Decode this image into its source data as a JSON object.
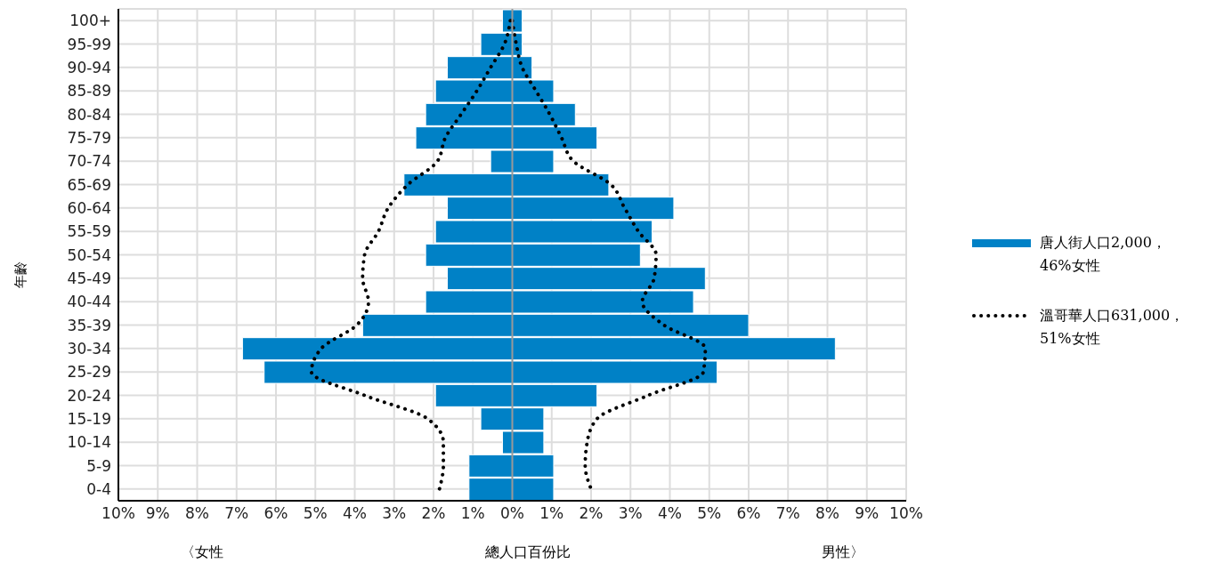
{
  "chart_data": {
    "type": "bar",
    "orientation": "horizontal",
    "stacked": true,
    "ylabel": "年齡",
    "xlabel": "總人口百份比",
    "annotations": [
      "〈女性",
      "男性〉"
    ],
    "categories": [
      "100+",
      "95-99",
      "90-94",
      "85-89",
      "80-84",
      "75-79",
      "70-74",
      "65-69",
      "60-64",
      "55-59",
      "50-54",
      "45-49",
      "40-44",
      "35-39",
      "30-34",
      "25-29",
      "20-24",
      "15-19",
      "10-14",
      "5-9",
      "0-4"
    ],
    "series": [
      {
        "name": "唐人街人口2,000，46%女性",
        "color": "#0081c6",
        "values": [
          -0.25,
          -0.8,
          -1.65,
          -1.95,
          -2.2,
          -2.45,
          -0.55,
          -2.75,
          -1.65,
          -1.95,
          -2.2,
          -1.65,
          -2.2,
          -3.8,
          -6.85,
          -6.3,
          -1.95,
          -0.8,
          -0.25,
          -1.1,
          -1.1
        ]
      },
      {
        "color": "#0081c6",
        "values": [
          0.25,
          0.25,
          0.5,
          1.05,
          1.6,
          2.15,
          1.05,
          2.45,
          4.1,
          3.55,
          3.25,
          4.9,
          4.6,
          6.0,
          8.2,
          5.2,
          2.15,
          0.8,
          0.8,
          1.05,
          1.05
        ]
      },
      {
        "name": "溫哥華人口631,000，51%女性",
        "type": "line",
        "color": "#000000",
        "values": [
          -0.05,
          -0.2,
          -0.55,
          -0.9,
          -1.3,
          -1.7,
          -1.9,
          -2.65,
          -3.15,
          -3.4,
          -3.75,
          -3.8,
          -3.65,
          -3.95,
          -4.85,
          -5.1,
          -3.75,
          -2.15,
          -1.75,
          -1.75,
          -1.85
        ]
      },
      {
        "type": "line",
        "color": "#000000",
        "values": [
          0,
          0.1,
          0.25,
          0.6,
          0.95,
          1.25,
          1.55,
          2.5,
          2.85,
          3.2,
          3.65,
          3.6,
          3.3,
          3.85,
          4.9,
          4.85,
          3.45,
          2.15,
          1.9,
          1.85,
          2.0
        ]
      }
    ],
    "xlim": [
      -10,
      10
    ],
    "xticks": [
      {
        "value": -10,
        "label": "10%"
      },
      {
        "value": -9,
        "label": "9%"
      },
      {
        "value": -8,
        "label": "8%"
      },
      {
        "value": -7,
        "label": "7%"
      },
      {
        "value": -6,
        "label": "6%"
      },
      {
        "value": -5,
        "label": "5%"
      },
      {
        "value": -4,
        "label": "4%"
      },
      {
        "value": -3,
        "label": "3%"
      },
      {
        "value": -2,
        "label": "2%"
      },
      {
        "value": -1,
        "label": "1%"
      },
      {
        "value": 0,
        "label": "0%"
      },
      {
        "value": 1,
        "label": "1%"
      },
      {
        "value": 2,
        "label": "2%"
      },
      {
        "value": 3,
        "label": "3%"
      },
      {
        "value": 4,
        "label": "4%"
      },
      {
        "value": 5,
        "label": "5%"
      },
      {
        "value": 6,
        "label": "6%"
      },
      {
        "value": 7,
        "label": "7%"
      },
      {
        "value": 8,
        "label": "8%"
      },
      {
        "value": 9,
        "label": "9%"
      },
      {
        "value": 10,
        "label": "10%"
      }
    ],
    "ref_lines": [
      {
        "axis": "x",
        "value": 0,
        "color": "#999999"
      }
    ],
    "grid": true,
    "legend": "right",
    "marker": "none",
    "line_style": "dotted"
  }
}
